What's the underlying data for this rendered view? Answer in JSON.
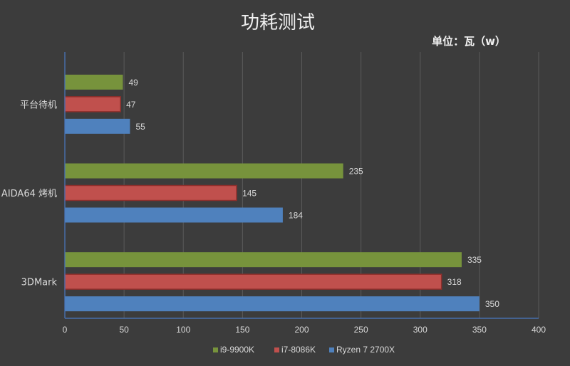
{
  "chart_data": {
    "type": "bar",
    "orientation": "horizontal",
    "title": "功耗测试",
    "unit_label": "单位：瓦（w）",
    "categories": [
      "平台待机",
      "AIDA64 烤机",
      "3DMark"
    ],
    "series": [
      {
        "name": "i9-9900K",
        "color": "#77933c",
        "values": [
          49,
          235,
          335
        ]
      },
      {
        "name": "i7-8086K",
        "color": "#c0504d",
        "values": [
          47,
          145,
          318
        ]
      },
      {
        "name": "Ryzen 7 2700X",
        "color": "#4f81bd",
        "values": [
          55,
          184,
          350
        ]
      }
    ],
    "xlim": [
      0,
      400
    ],
    "xticks": [
      "0",
      "50",
      "100",
      "150",
      "200",
      "250",
      "300",
      "350",
      "400"
    ],
    "grid": true,
    "legend_position": "bottom"
  }
}
